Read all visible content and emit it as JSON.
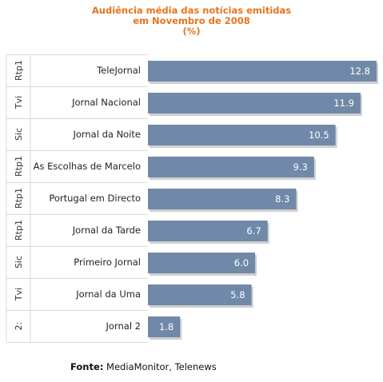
{
  "chart_data": {
    "type": "bar",
    "orientation": "horizontal",
    "title_lines": [
      "Audiência média das notícias emitidas",
      "em Novembro de 2008",
      "(%)"
    ],
    "categories": [
      "TeleJornal",
      "Jornal Nacional",
      "Jornal da Noite",
      "As Escolhas de Marcelo",
      "Portugal em Directo",
      "Jornal da Tarde",
      "Primeiro Jornal",
      "Jornal da Uma",
      "Jornal 2"
    ],
    "channels": [
      "Rtp1",
      "Tvi",
      "Sic",
      "Rtp1",
      "Rtp1",
      "Rtp1",
      "Sic",
      "Tvi",
      "2:"
    ],
    "values": [
      12.8,
      11.9,
      10.5,
      9.3,
      8.3,
      6.7,
      6.0,
      5.8,
      1.8
    ],
    "value_labels": [
      "12.8",
      "11.9",
      "10.5",
      "9.3",
      "8.3",
      "6.7",
      "6.0",
      "5.8",
      "1.8"
    ],
    "xlim": [
      0,
      12.8
    ],
    "grid": false,
    "legend": "none",
    "colors": {
      "bar": "#7089a8",
      "bar_shadow": "#cfcfcf",
      "title": "#e8731a",
      "row_border": "#d9d9d9"
    }
  },
  "source": {
    "label": "Fonte:",
    "text": "MediaMonitor, Telenews"
  }
}
